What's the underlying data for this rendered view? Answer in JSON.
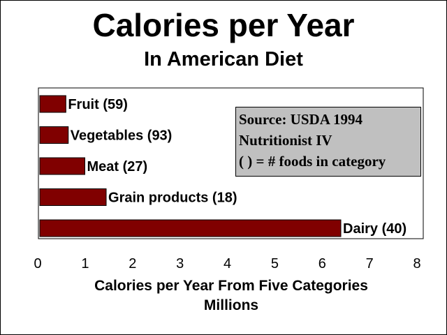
{
  "chart_data": {
    "type": "bar",
    "orientation": "horizontal",
    "title": "Calories per Year",
    "subtitle": "In  American Diet",
    "categories": [
      "Fruit (59)",
      "Vegetables (93)",
      "Meat (27)",
      "Grain products (18)",
      "Dairy (40)"
    ],
    "values": [
      0.55,
      0.6,
      0.95,
      1.4,
      6.35
    ],
    "xlabel": "Calories per Year From Five Categories",
    "xlabel_units": "Millions",
    "xlim": [
      0,
      8
    ],
    "xticks": [
      "0",
      "1",
      "2",
      "3",
      "4",
      "5",
      "6",
      "7",
      "8"
    ],
    "grid": false,
    "bar_color": "#800000",
    "annotation": {
      "lines": [
        "Source: USDA 1994",
        "Nutritionist IV",
        "( ) = # foods in category"
      ],
      "background": "#c0c0c0",
      "placement": "top-right"
    }
  }
}
